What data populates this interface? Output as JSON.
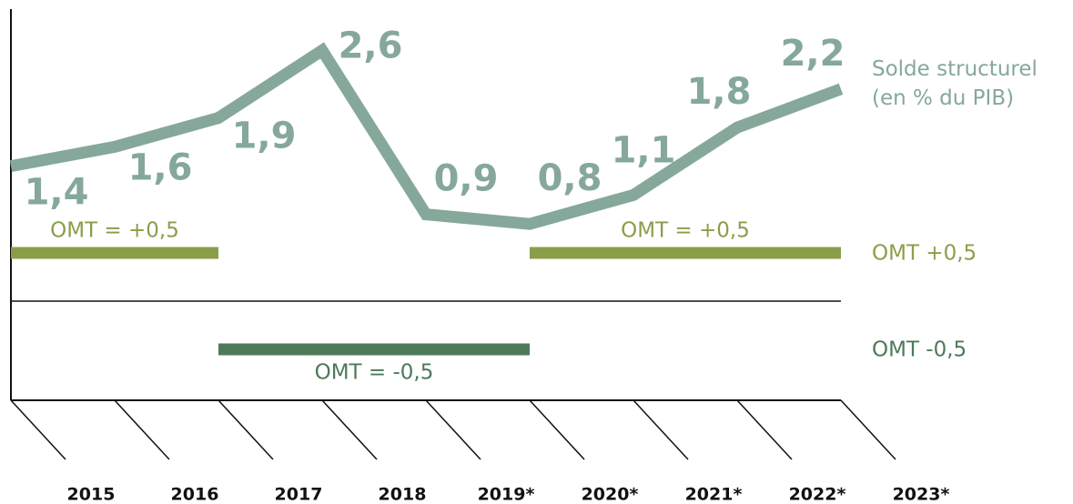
{
  "chart_data": {
    "type": "line",
    "categories": [
      "2015",
      "2016",
      "2017",
      "2018",
      "2019*",
      "2020*",
      "2021*",
      "2022*",
      "2023*"
    ],
    "series": [
      {
        "name": "Solde structurel (en % du PIB)",
        "color": "#85a89a",
        "values": [
          1.4,
          1.6,
          1.9,
          2.6,
          0.9,
          0.8,
          1.1,
          1.8,
          2.2
        ],
        "value_labels": [
          "1,4",
          "1,6",
          "1,9",
          "2,6",
          "0,9",
          "0,8",
          "1,1",
          "1,8",
          "2,2"
        ]
      }
    ],
    "ylim": [
      -1,
      3
    ],
    "reference_lines": [
      {
        "name": "OMT +0,5",
        "value": 0.5,
        "color": "#8a9e4a"
      },
      {
        "name": "OMT -0,5",
        "value": -0.5,
        "color": "#4e7a5a"
      }
    ],
    "reference_segments": [
      {
        "label": "OMT = +0,5",
        "value": 0.5,
        "start": "2015",
        "end": "2017",
        "color": "#8a9e4a"
      },
      {
        "label": "OMT = -0,5",
        "value": -0.5,
        "start": "2017",
        "end": "2020*",
        "color": "#4e7a5a"
      },
      {
        "label": "OMT = +0,5",
        "value": 0.5,
        "start": "2020*",
        "end": "2023*",
        "color": "#8a9e4a"
      }
    ]
  }
}
